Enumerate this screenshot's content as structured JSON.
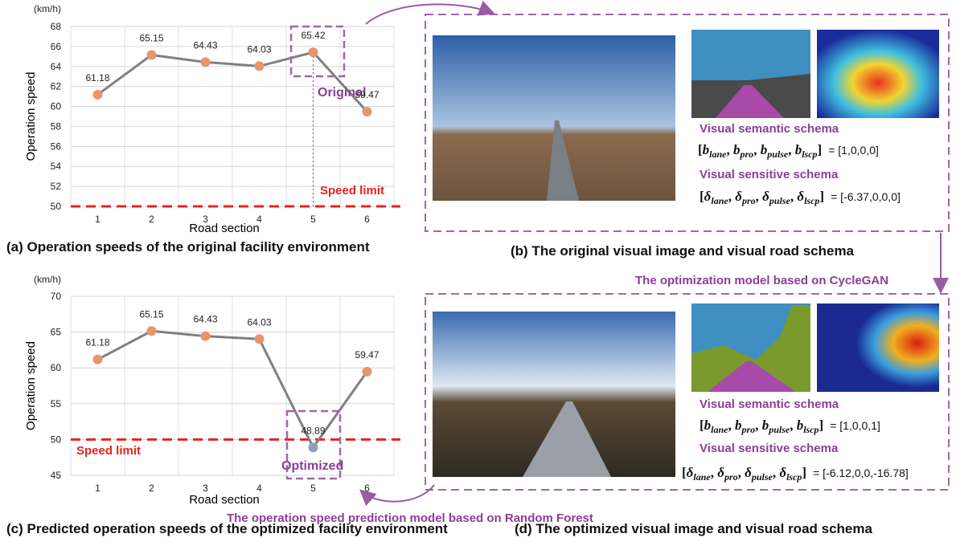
{
  "chart_data": [
    {
      "type": "line",
      "y_unit": "(km/h)",
      "ylabel": "Operation speed",
      "xlabel": "Road section",
      "categories": [
        "1",
        "2",
        "3",
        "4",
        "5",
        "6"
      ],
      "values": [
        61.18,
        65.15,
        64.43,
        64.03,
        65.42,
        59.47
      ],
      "line_color": "#808080",
      "marker_colors": [
        "#e8956b",
        "#e8956b",
        "#e8956b",
        "#e8956b",
        "#e8956b",
        "#e8956b"
      ],
      "ylim": [
        50,
        68
      ],
      "yticks": [
        50,
        52,
        54,
        56,
        58,
        60,
        62,
        64,
        66,
        68
      ],
      "grid": true,
      "speed_limit": 50,
      "speed_limit_label": "Speed limit",
      "highlight_label": "Original",
      "caption": "(a) Operation speeds of the original facility environment"
    },
    {
      "type": "line",
      "y_unit": "(km/h)",
      "ylabel": "Operation speed",
      "xlabel": "Road section",
      "categories": [
        "1",
        "2",
        "3",
        "4",
        "5",
        "6"
      ],
      "values": [
        61.18,
        65.15,
        64.43,
        64.03,
        48.89,
        59.47
      ],
      "line_color": "#808080",
      "marker_colors": [
        "#e8956b",
        "#e8956b",
        "#e8956b",
        "#e8956b",
        "#8f9fc4",
        "#e8956b"
      ],
      "ylim": [
        45,
        70
      ],
      "yticks": [
        45,
        50,
        55,
        60,
        65,
        70
      ],
      "grid": true,
      "speed_limit": 50,
      "speed_limit_label": "Speed limit",
      "highlight_label": "Optimized",
      "caption": "(c) Predicted operation speeds of the optimized facility environment"
    }
  ],
  "panels": [
    {
      "semantic_title": "Visual semantic schema",
      "semantic_symbol": "b",
      "semantic_vector": "= [1,0,0,0]",
      "sensitive_title": "Visual sensitive schema",
      "sensitive_symbol": "δ",
      "sensitive_vector": "= [-6.37,0,0,0]",
      "subscripts": [
        "lane",
        "pro",
        "pulse",
        "lscp"
      ],
      "caption": "(b) The original visual image and visual road schema"
    },
    {
      "semantic_title": "Visual semantic schema",
      "semantic_symbol": "b",
      "semantic_vector": "= [1,0,0,1]",
      "sensitive_title": "Visual sensitive schema",
      "sensitive_symbol": "δ",
      "sensitive_vector": "= [-6.12,0,0,-16.78]",
      "subscripts": [
        "lane",
        "pro",
        "pulse",
        "lscp"
      ],
      "caption": "(d) The optimized visual image and visual road schema"
    }
  ],
  "arrows": {
    "cyclegan": "The optimization model based on CycleGAN",
    "random_forest": "The operation speed prediction model based on Random Forest"
  }
}
